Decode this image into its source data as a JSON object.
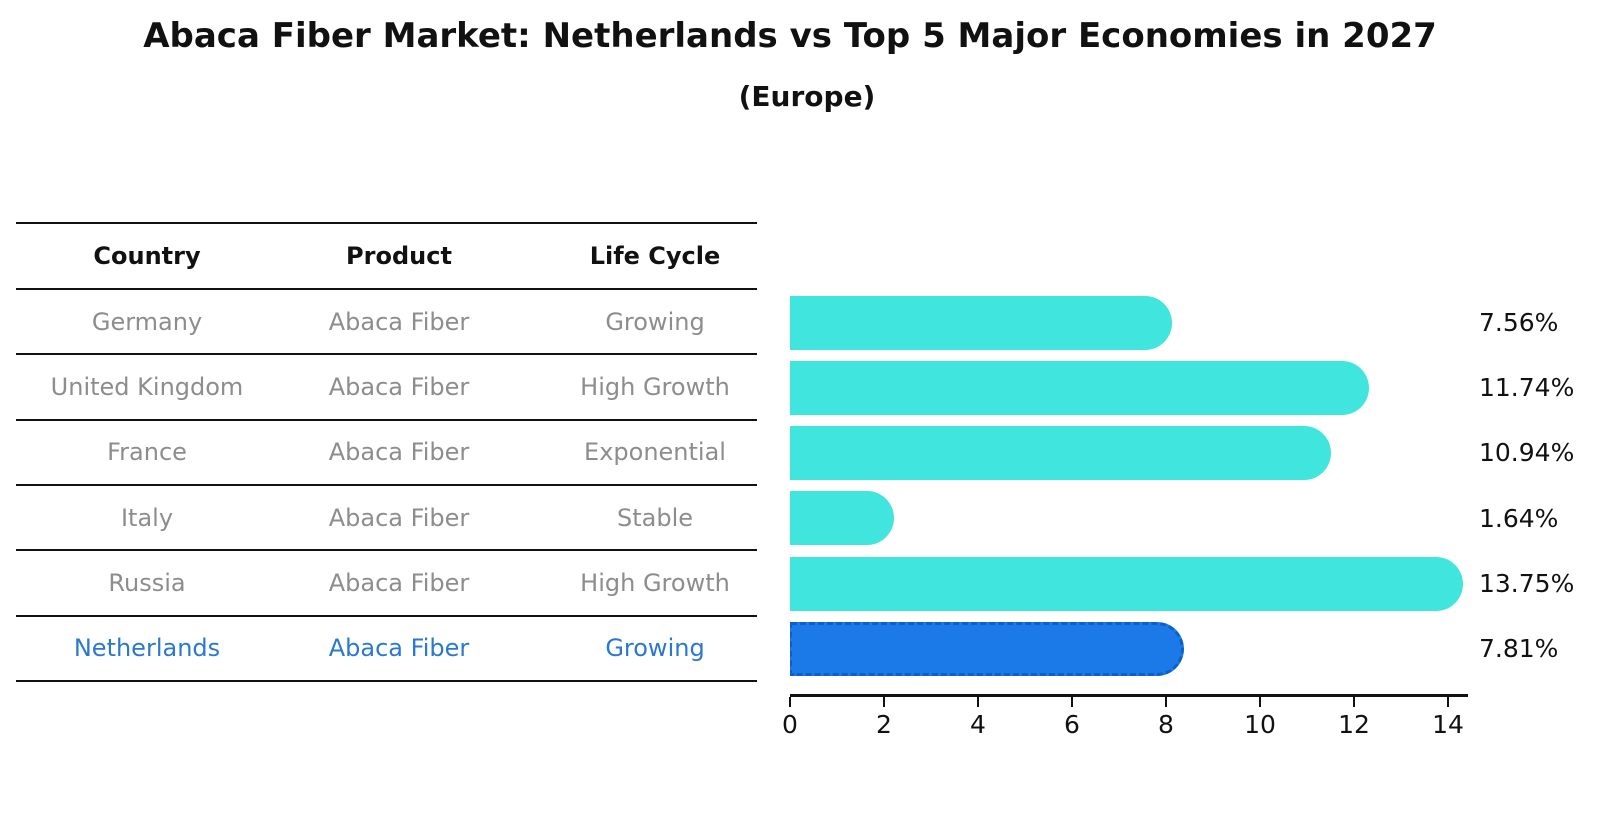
{
  "title": "Abaca Fiber Market: Netherlands vs Top 5 Major Economies in 2027",
  "subtitle": "(Europe)",
  "table": {
    "headers": [
      "Country",
      "Product",
      "Life Cycle"
    ],
    "rows": [
      {
        "country": "Germany",
        "product": "Abaca Fiber",
        "life_cycle": "Growing",
        "highlight": false
      },
      {
        "country": "United Kingdom",
        "product": "Abaca Fiber",
        "life_cycle": "High Growth",
        "highlight": false
      },
      {
        "country": "France",
        "product": "Abaca Fiber",
        "life_cycle": "Exponential",
        "highlight": false
      },
      {
        "country": "Italy",
        "product": "Abaca Fiber",
        "life_cycle": "Stable",
        "highlight": false
      },
      {
        "country": "Russia",
        "product": "Abaca Fiber",
        "life_cycle": "High Growth",
        "highlight": false
      },
      {
        "country": "Netherlands",
        "product": "Abaca Fiber",
        "life_cycle": "Growing",
        "highlight": true
      }
    ]
  },
  "chart_data": {
    "type": "bar",
    "orientation": "horizontal",
    "title": "Abaca Fiber Market: Netherlands vs Top 5 Major Economies in 2027",
    "subtitle": "(Europe)",
    "categories": [
      "Germany",
      "United Kingdom",
      "France",
      "Italy",
      "Russia",
      "Netherlands"
    ],
    "values": [
      7.56,
      11.74,
      10.94,
      1.64,
      13.75,
      7.81
    ],
    "value_labels": [
      "7.56%",
      "11.74%",
      "10.94%",
      "1.64%",
      "13.75%",
      "7.81%"
    ],
    "unit": "%",
    "xticks": [
      0,
      2,
      4,
      6,
      8,
      10,
      12,
      14
    ],
    "xlim": [
      0,
      14.4
    ],
    "grid": false,
    "legend": "none",
    "bar_color": "#40e5dd",
    "highlight_color": "#1c79e8",
    "highlight_text_color": "#2a79d0",
    "highlight_index": 5
  }
}
